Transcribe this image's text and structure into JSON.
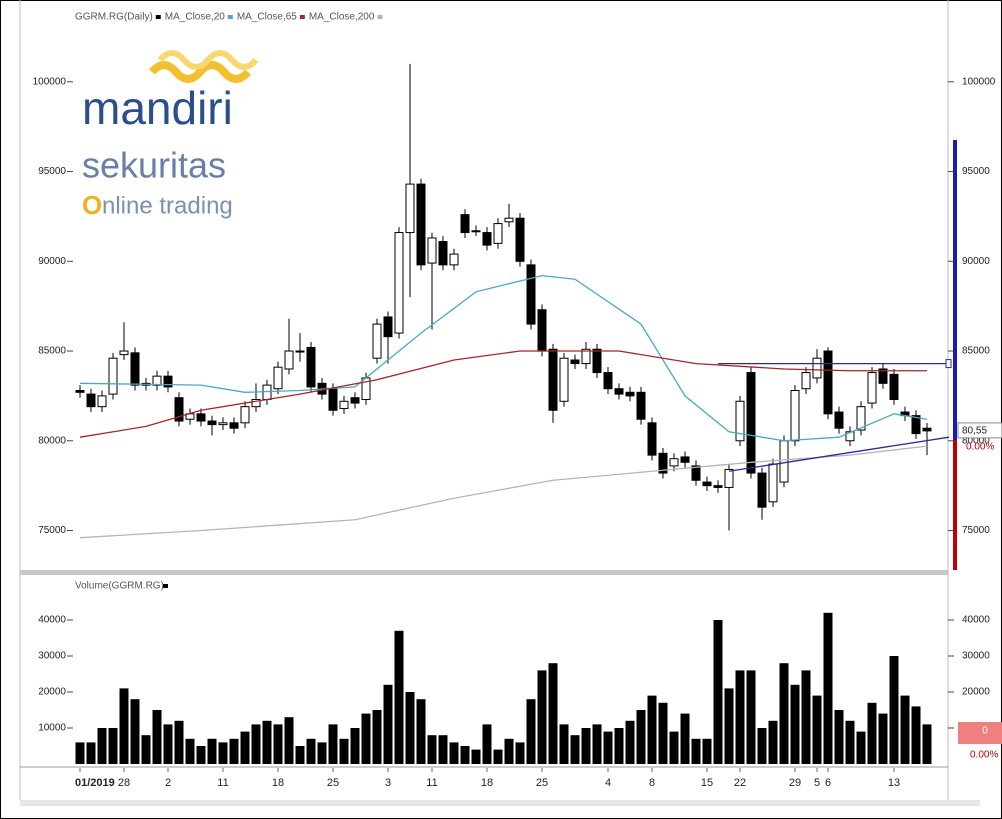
{
  "logo": {
    "name": "mandiri",
    "line2": "sekuritas",
    "initial": "O",
    "rest": "nline trading"
  },
  "chart_data": [
    {
      "type": "candlestick",
      "title": "GGRM.RG(Daily)",
      "ylim": [
        72800,
        104000
      ],
      "yticks": [
        75000,
        80000,
        85000,
        90000,
        95000,
        100000
      ],
      "series": [
        {
          "name": "GGRM.RG(Daily)",
          "color": "#000000",
          "open": [
            82800,
            82600,
            81900,
            82600,
            84800,
            84900,
            83200,
            83100,
            83600,
            82400,
            81200,
            81500,
            81100,
            80900,
            81000,
            81000,
            81900,
            82300,
            82900,
            84000,
            85000,
            85200,
            83200,
            82900,
            81800,
            82400,
            82300,
            84600,
            86900,
            86000,
            91600,
            94300,
            89900,
            91100,
            89800,
            92600,
            91700,
            91600,
            91000,
            92200,
            92400,
            89800,
            87300,
            85100,
            82200,
            84500,
            84300,
            85100,
            83800,
            82900,
            82700,
            82700,
            81000,
            79300,
            78600,
            79100,
            78600,
            77700,
            77500,
            77400,
            80000,
            83800,
            78200,
            76600,
            77700,
            80000,
            82900,
            83500,
            85000,
            81600,
            80000,
            80600,
            82100,
            84000,
            83700,
            81600,
            81400,
            80700
          ],
          "high": [
            83100,
            82900,
            82800,
            84900,
            86600,
            85200,
            83500,
            83900,
            83900,
            82700,
            81800,
            81800,
            81400,
            81300,
            81300,
            82200,
            83200,
            83400,
            84400,
            86800,
            86000,
            85500,
            83500,
            83200,
            82500,
            82700,
            83800,
            86800,
            87200,
            91900,
            101000,
            94600,
            91600,
            91400,
            90700,
            92900,
            92000,
            91900,
            92400,
            93200,
            92700,
            90100,
            87600,
            85400,
            84900,
            84800,
            85500,
            85400,
            84100,
            83200,
            83000,
            83000,
            81300,
            79600,
            79300,
            79400,
            78900,
            78000,
            77800,
            78700,
            82500,
            84100,
            78500,
            79000,
            80300,
            83100,
            84100,
            85100,
            85200,
            81900,
            80800,
            82200,
            84100,
            84300,
            84000,
            81900,
            81700,
            81000
          ],
          "low": [
            82400,
            81600,
            81600,
            82300,
            84500,
            82800,
            82800,
            82800,
            82700,
            80800,
            80900,
            80800,
            80300,
            80600,
            80400,
            80700,
            81600,
            82000,
            82600,
            83700,
            84400,
            82700,
            82300,
            81400,
            81500,
            81800,
            82000,
            84300,
            84300,
            85700,
            88000,
            89500,
            86200,
            89500,
            89500,
            91300,
            91400,
            90600,
            90700,
            91900,
            89700,
            86200,
            84700,
            81000,
            81900,
            84000,
            84000,
            83500,
            82600,
            82300,
            82200,
            80900,
            78900,
            77900,
            78300,
            78500,
            77500,
            77200,
            77100,
            75000,
            79700,
            77900,
            75600,
            76300,
            77400,
            79700,
            82600,
            83200,
            81200,
            80400,
            79700,
            80300,
            81800,
            82900,
            82000,
            81100,
            80100,
            79200
          ],
          "close": [
            82700,
            81900,
            82500,
            84600,
            85000,
            83100,
            83100,
            83600,
            83000,
            81100,
            81500,
            81100,
            80900,
            81000,
            80700,
            81900,
            82300,
            83100,
            84100,
            85000,
            85000,
            83000,
            82600,
            81700,
            82200,
            82100,
            83500,
            86500,
            85800,
            91600,
            94300,
            89800,
            91300,
            89800,
            90400,
            91600,
            91700,
            90900,
            92100,
            92400,
            90000,
            86500,
            85000,
            81700,
            84600,
            84300,
            85100,
            83800,
            82900,
            82600,
            82500,
            81200,
            79200,
            78200,
            79000,
            78800,
            77800,
            77500,
            77400,
            78400,
            82200,
            78200,
            76300,
            78700,
            80000,
            82800,
            83800,
            84600,
            81500,
            80700,
            80500,
            81900,
            83800,
            83200,
            82300,
            81400,
            80400,
            80550
          ]
        }
      ],
      "lines": [
        {
          "name": "MA_Close,20",
          "color": "#4aa8c6",
          "x": [
            0,
            11,
            15,
            20,
            25,
            31,
            36,
            42,
            45,
            51,
            55,
            59,
            64,
            69,
            74,
            77
          ],
          "values": [
            83200,
            83100,
            82700,
            82800,
            83000,
            86000,
            88300,
            89200,
            89000,
            86500,
            82500,
            80500,
            80000,
            80200,
            81500,
            81200
          ]
        },
        {
          "name": "MA_Close,65",
          "color": "#a3262a",
          "x": [
            0,
            6,
            11,
            20,
            27,
            34,
            40,
            49,
            56,
            64,
            70,
            77
          ],
          "values": [
            80200,
            80800,
            81700,
            82600,
            83400,
            84500,
            85000,
            85000,
            84300,
            84000,
            83900,
            83900
          ]
        },
        {
          "name": "MA_Close,200",
          "color": "#b4b4b4",
          "x": [
            0,
            11,
            25,
            34,
            43,
            52,
            61,
            70,
            77
          ],
          "values": [
            74600,
            75000,
            75600,
            76800,
            77800,
            78300,
            78800,
            79200,
            79700
          ]
        }
      ],
      "trendlines": [
        {
          "color": "#2a2a9a",
          "x": [
            58,
            79
          ],
          "values": [
            84300,
            84300
          ]
        },
        {
          "color": "#2a2a9a",
          "x": [
            59,
            79
          ],
          "values": [
            78300,
            80200
          ]
        }
      ],
      "last_label": "80,55",
      "change_label": "0.00%"
    },
    {
      "type": "bar",
      "title": "Volume(GGRM.RG)",
      "color": "#000000",
      "ylim": [
        0,
        50000
      ],
      "yticks": [
        10000,
        20000,
        30000,
        40000
      ],
      "categories": [
        "01/2019",
        null,
        null,
        null,
        "28",
        null,
        null,
        null,
        "2",
        null,
        null,
        null,
        null,
        "11",
        null,
        null,
        null,
        null,
        "18",
        null,
        null,
        null,
        null,
        "25",
        null,
        null,
        null,
        null,
        "3",
        null,
        null,
        null,
        "11",
        null,
        null,
        null,
        null,
        "18",
        null,
        null,
        null,
        null,
        "25",
        null,
        null,
        null,
        null,
        null,
        "4",
        null,
        null,
        null,
        "8",
        null,
        null,
        null,
        null,
        "15",
        null,
        null,
        "22",
        null,
        null,
        null,
        null,
        "29",
        null,
        "5",
        "6",
        null,
        null,
        null,
        null,
        null,
        "13",
        null,
        null,
        null
      ],
      "values": [
        6000,
        6000,
        10000,
        10000,
        21000,
        18000,
        8000,
        15000,
        11000,
        12000,
        7000,
        5000,
        7000,
        6000,
        7000,
        9000,
        11000,
        12000,
        11000,
        13000,
        5000,
        7000,
        6000,
        11000,
        7000,
        10000,
        14000,
        15000,
        22000,
        37000,
        20000,
        18000,
        8000,
        8000,
        6000,
        5000,
        4000,
        11000,
        4000,
        7000,
        6000,
        18000,
        26000,
        28000,
        11000,
        8000,
        10000,
        11000,
        9000,
        10000,
        12000,
        15000,
        19000,
        17000,
        9000,
        14000,
        7000,
        7000,
        40000,
        21000,
        26000,
        26000,
        10000,
        12000,
        28000,
        22000,
        26000,
        19000,
        42000,
        15000,
        12000,
        9000,
        17000,
        14000,
        30000,
        19000,
        16000,
        11000
      ],
      "last_label": "0",
      "change_label": "0.00%"
    }
  ]
}
